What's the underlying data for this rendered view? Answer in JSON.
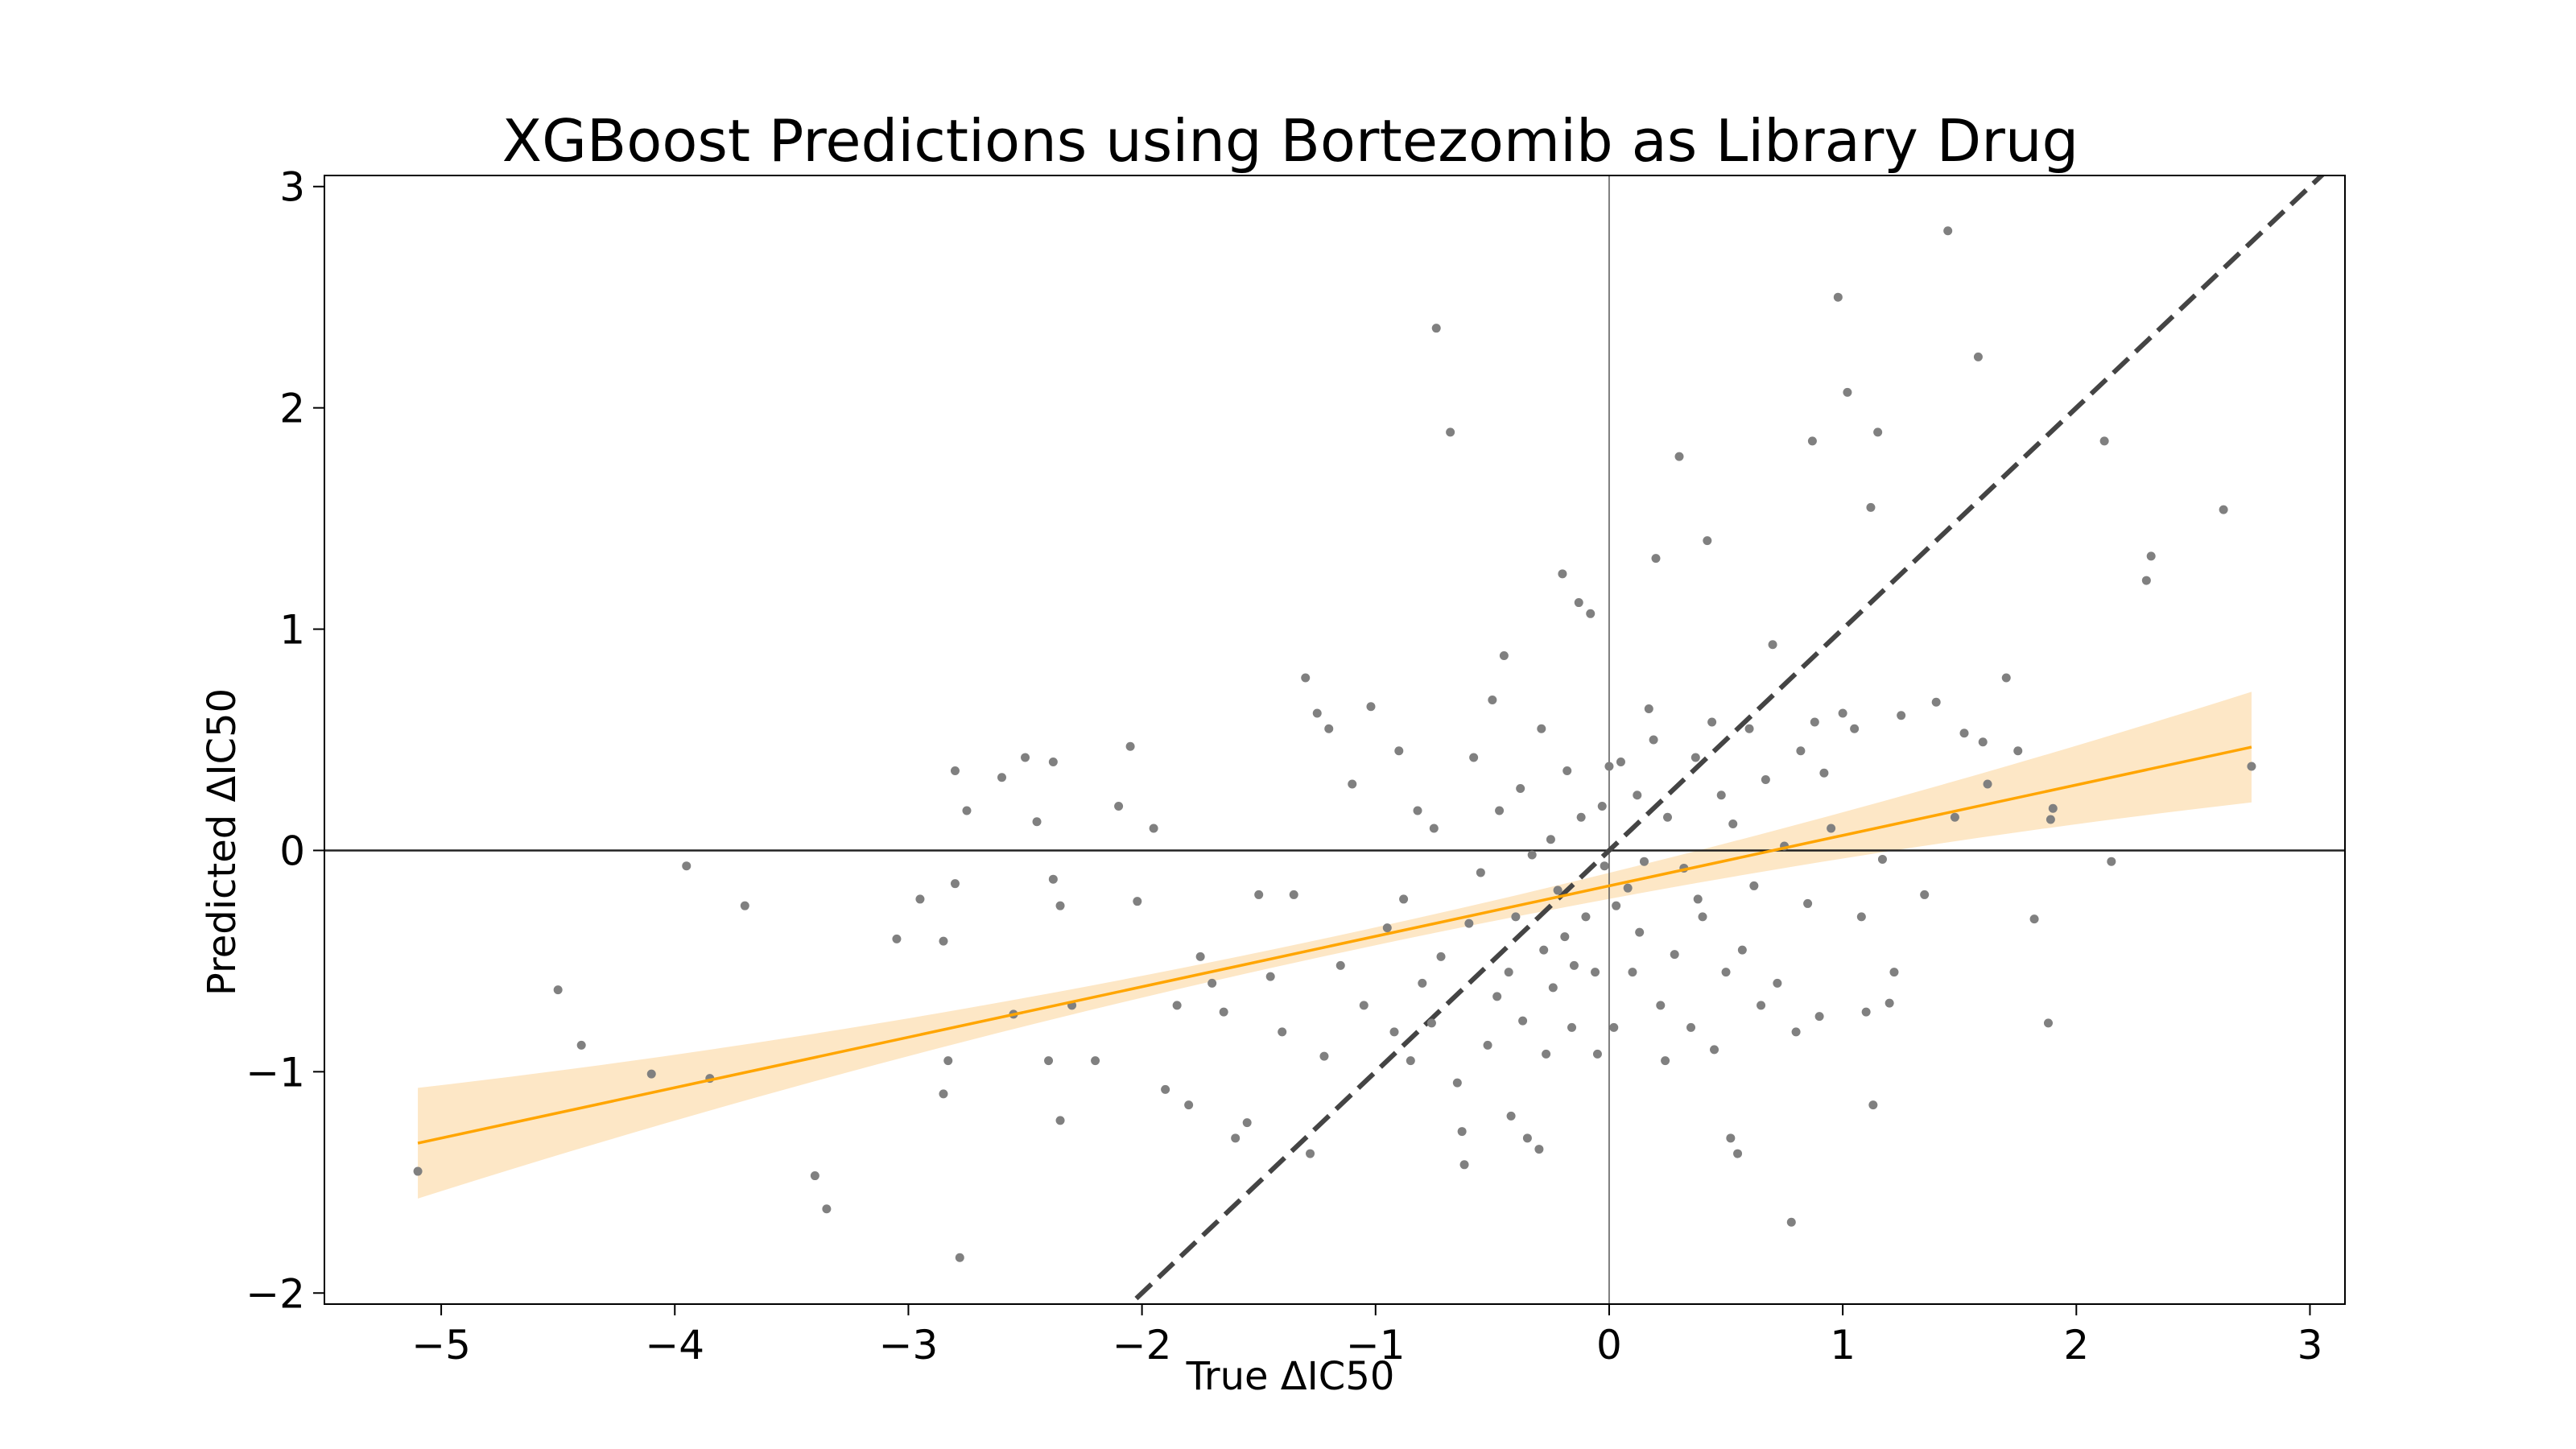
{
  "chart_data": {
    "type": "scatter",
    "title": "XGBoost Predictions using Bortezomib as Library Drug",
    "xlabel": "True ΔIC50",
    "ylabel": "Predicted ΔIC50",
    "xlim": [
      -5.5,
      3.15
    ],
    "ylim": [
      -2.05,
      3.05
    ],
    "xticks": [
      -5,
      -4,
      -3,
      -2,
      -1,
      0,
      1,
      2,
      3
    ],
    "xtick_labels": [
      "−5",
      "−4",
      "−3",
      "−2",
      "−1",
      "0",
      "1",
      "2",
      "3"
    ],
    "yticks": [
      -2,
      -1,
      0,
      1,
      2,
      3
    ],
    "ytick_labels": [
      "−2",
      "−1",
      "0",
      "1",
      "2",
      "3"
    ],
    "grid": false,
    "legend": "none",
    "reference_lines": {
      "horizontal_zero": true,
      "vertical_zero": true,
      "identity_dashed": true
    },
    "regression": {
      "x_range": [
        -5.1,
        2.75
      ],
      "slope": 0.228,
      "intercept": -0.16,
      "ci_half_width_at_ends": 0.25,
      "ci_half_width_at_center": 0.04,
      "color": "#ffa500",
      "band_color": "#fde7c6"
    },
    "point_color": "#808080",
    "line_color": "#444444",
    "points": [
      [
        -5.1,
        -1.45
      ],
      [
        -4.5,
        -0.63
      ],
      [
        -4.4,
        -0.88
      ],
      [
        -4.1,
        -1.01
      ],
      [
        -3.95,
        -0.07
      ],
      [
        -3.85,
        -1.03
      ],
      [
        -3.7,
        -0.25
      ],
      [
        -3.4,
        -1.47
      ],
      [
        -3.35,
        -1.62
      ],
      [
        -3.05,
        -0.4
      ],
      [
        -2.95,
        -0.22
      ],
      [
        -2.85,
        -1.1
      ],
      [
        -2.85,
        -0.41
      ],
      [
        -2.8,
        0.36
      ],
      [
        -2.78,
        -1.84
      ],
      [
        -2.83,
        -0.95
      ],
      [
        -2.75,
        0.18
      ],
      [
        -2.8,
        -0.15
      ],
      [
        -2.6,
        0.33
      ],
      [
        -2.55,
        -0.74
      ],
      [
        -2.5,
        0.42
      ],
      [
        -2.45,
        0.13
      ],
      [
        -2.38,
        -0.13
      ],
      [
        -2.4,
        -0.95
      ],
      [
        -2.35,
        -1.22
      ],
      [
        -2.38,
        0.4
      ],
      [
        -2.35,
        -0.25
      ],
      [
        -2.3,
        -0.7
      ],
      [
        -2.2,
        -0.95
      ],
      [
        -2.1,
        0.2
      ],
      [
        -2.05,
        0.47
      ],
      [
        -2.02,
        -0.23
      ],
      [
        -1.95,
        0.1
      ],
      [
        -1.9,
        -1.08
      ],
      [
        -1.85,
        -0.7
      ],
      [
        -1.8,
        -1.15
      ],
      [
        -1.75,
        -0.48
      ],
      [
        -1.7,
        -0.6
      ],
      [
        -1.65,
        -0.73
      ],
      [
        -1.6,
        -1.3
      ],
      [
        -1.55,
        -1.23
      ],
      [
        -1.5,
        -0.2
      ],
      [
        -1.45,
        -0.57
      ],
      [
        -1.4,
        -0.82
      ],
      [
        -1.35,
        -0.2
      ],
      [
        -1.3,
        0.78
      ],
      [
        -1.28,
        -1.37
      ],
      [
        -1.25,
        0.62
      ],
      [
        -1.2,
        0.55
      ],
      [
        -1.22,
        -0.93
      ],
      [
        -1.15,
        -0.52
      ],
      [
        -1.1,
        0.3
      ],
      [
        -1.05,
        -0.7
      ],
      [
        -1.02,
        0.65
      ],
      [
        -0.95,
        -0.35
      ],
      [
        -0.92,
        -0.82
      ],
      [
        -0.9,
        0.45
      ],
      [
        -0.88,
        -0.22
      ],
      [
        -0.85,
        -0.95
      ],
      [
        -0.82,
        0.18
      ],
      [
        -0.8,
        -0.6
      ],
      [
        -0.76,
        -0.78
      ],
      [
        -0.75,
        0.1
      ],
      [
        -0.74,
        2.36
      ],
      [
        -0.72,
        -0.48
      ],
      [
        -0.68,
        1.89
      ],
      [
        -0.65,
        -1.05
      ],
      [
        -0.63,
        -1.27
      ],
      [
        -0.62,
        -1.42
      ],
      [
        -0.6,
        -0.33
      ],
      [
        -0.58,
        0.42
      ],
      [
        -0.55,
        -0.1
      ],
      [
        -0.52,
        -0.88
      ],
      [
        -0.5,
        0.68
      ],
      [
        -0.48,
        -0.66
      ],
      [
        -0.47,
        0.18
      ],
      [
        -0.45,
        0.88
      ],
      [
        -0.43,
        -0.55
      ],
      [
        -0.42,
        -1.2
      ],
      [
        -0.4,
        -0.3
      ],
      [
        -0.38,
        0.28
      ],
      [
        -0.37,
        -0.77
      ],
      [
        -0.35,
        -1.3
      ],
      [
        -0.33,
        -0.02
      ],
      [
        -0.3,
        -1.35
      ],
      [
        -0.29,
        0.55
      ],
      [
        -0.28,
        -0.45
      ],
      [
        -0.27,
        -0.92
      ],
      [
        -0.25,
        0.05
      ],
      [
        -0.24,
        -0.62
      ],
      [
        -0.22,
        -0.18
      ],
      [
        -0.2,
        1.25
      ],
      [
        -0.19,
        -0.39
      ],
      [
        -0.18,
        0.36
      ],
      [
        -0.16,
        -0.8
      ],
      [
        -0.15,
        -0.52
      ],
      [
        -0.13,
        1.12
      ],
      [
        -0.12,
        0.15
      ],
      [
        -0.1,
        -0.3
      ],
      [
        -0.08,
        1.07
      ],
      [
        -0.06,
        -0.55
      ],
      [
        -0.05,
        -0.92
      ],
      [
        -0.03,
        0.2
      ],
      [
        -0.02,
        -0.07
      ],
      [
        0.0,
        0.38
      ],
      [
        0.02,
        -0.8
      ],
      [
        0.03,
        -0.25
      ],
      [
        0.05,
        0.4
      ],
      [
        0.08,
        -0.17
      ],
      [
        0.1,
        -0.55
      ],
      [
        0.12,
        0.25
      ],
      [
        0.13,
        -0.37
      ],
      [
        0.15,
        -0.05
      ],
      [
        0.17,
        0.64
      ],
      [
        0.19,
        0.5
      ],
      [
        0.2,
        1.32
      ],
      [
        0.22,
        -0.7
      ],
      [
        0.24,
        -0.95
      ],
      [
        0.25,
        0.15
      ],
      [
        0.28,
        -0.47
      ],
      [
        0.3,
        1.78
      ],
      [
        0.32,
        -0.08
      ],
      [
        0.35,
        -0.8
      ],
      [
        0.37,
        0.42
      ],
      [
        0.38,
        -0.22
      ],
      [
        0.4,
        -0.3
      ],
      [
        0.42,
        1.4
      ],
      [
        0.44,
        0.58
      ],
      [
        0.45,
        -0.9
      ],
      [
        0.48,
        0.25
      ],
      [
        0.5,
        -0.55
      ],
      [
        0.52,
        -1.3
      ],
      [
        0.53,
        0.12
      ],
      [
        0.55,
        -1.37
      ],
      [
        0.57,
        -0.45
      ],
      [
        0.6,
        0.55
      ],
      [
        0.62,
        -0.16
      ],
      [
        0.65,
        -0.7
      ],
      [
        0.67,
        0.32
      ],
      [
        0.7,
        0.93
      ],
      [
        0.72,
        -0.6
      ],
      [
        0.75,
        0.02
      ],
      [
        0.78,
        -1.68
      ],
      [
        0.8,
        -0.82
      ],
      [
        0.82,
        0.45
      ],
      [
        0.85,
        -0.24
      ],
      [
        0.87,
        1.85
      ],
      [
        0.88,
        0.58
      ],
      [
        0.9,
        -0.75
      ],
      [
        0.92,
        0.35
      ],
      [
        0.95,
        0.1
      ],
      [
        0.98,
        2.5
      ],
      [
        1.0,
        0.62
      ],
      [
        1.02,
        2.07
      ],
      [
        1.05,
        0.55
      ],
      [
        1.08,
        -0.3
      ],
      [
        1.1,
        -0.73
      ],
      [
        1.12,
        1.55
      ],
      [
        1.13,
        -1.15
      ],
      [
        1.15,
        1.89
      ],
      [
        1.17,
        -0.04
      ],
      [
        1.2,
        -0.69
      ],
      [
        1.22,
        -0.55
      ],
      [
        1.25,
        0.61
      ],
      [
        1.35,
        -0.2
      ],
      [
        1.4,
        0.67
      ],
      [
        1.45,
        2.8
      ],
      [
        1.48,
        0.15
      ],
      [
        1.52,
        0.53
      ],
      [
        1.58,
        2.23
      ],
      [
        1.6,
        0.49
      ],
      [
        1.62,
        0.3
      ],
      [
        1.7,
        0.78
      ],
      [
        1.75,
        0.45
      ],
      [
        1.82,
        -0.31
      ],
      [
        1.88,
        -0.78
      ],
      [
        1.9,
        0.19
      ],
      [
        1.89,
        0.14
      ],
      [
        2.12,
        1.85
      ],
      [
        2.15,
        -0.05
      ],
      [
        2.3,
        1.22
      ],
      [
        2.32,
        1.33
      ],
      [
        2.63,
        1.54
      ],
      [
        2.75,
        0.38
      ]
    ]
  }
}
